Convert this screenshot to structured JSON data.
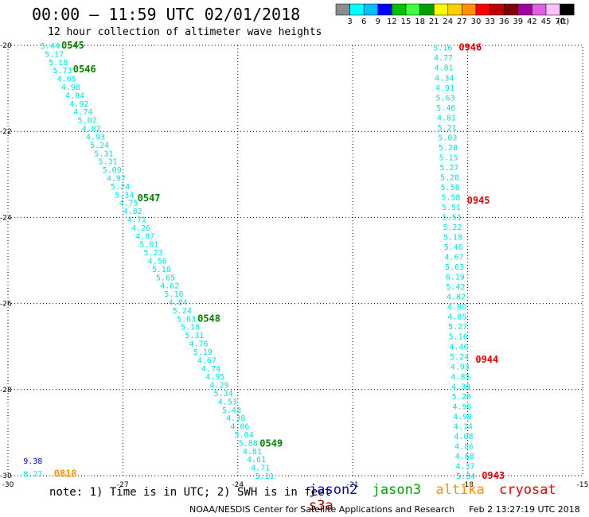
{
  "header": {
    "title": "00:00 – 11:59 UTC 02/01/2018",
    "subtitle": "12 hour collection of altimeter wave heights"
  },
  "colorbar": {
    "colors": [
      "#8c8c8c",
      "#00ffff",
      "#00c0ff",
      "#0000ff",
      "#00c000",
      "#40ff40",
      "#00a000",
      "#ffff00",
      "#ffd000",
      "#ff9000",
      "#ff0000",
      "#c00000",
      "#800000",
      "#a000a0",
      "#e060e0",
      "#ffc0ff",
      "#000000"
    ],
    "labels": [
      "3",
      "6",
      "9",
      "12",
      "15",
      "18",
      "21",
      "24",
      "27",
      "30",
      "33",
      "36",
      "39",
      "42",
      "45",
      "70"
    ],
    "unit": "(ft)"
  },
  "axes": {
    "x_ticks": [
      "-30",
      "-27",
      "-24",
      "-21",
      "-18",
      "-15"
    ],
    "y_ticks": [
      "-20",
      "-22",
      "-24",
      "-26",
      "-28",
      "-30"
    ]
  },
  "chart_data": {
    "type": "scatter",
    "xlim": [
      -30,
      -15
    ],
    "ylim": [
      -30,
      -20
    ],
    "grid": "dotted",
    "tracks": [
      {
        "satellite": "jason3",
        "lon_start": -28.9,
        "lat_start": -20.0,
        "lon_end": -23.3,
        "lat_end": -30.0,
        "values": [
          "5.44",
          "5.17",
          "5.18",
          "5.73",
          "4.65",
          "4.98",
          "4.04",
          "4.92",
          "4.74",
          "5.02",
          "4.82",
          "4.93",
          "5.24",
          "5.31",
          "5.31",
          "5.09",
          "4.97",
          "5.24",
          "5.34",
          "4.75",
          "4.82",
          "4.71",
          "4.26",
          "4.87",
          "5.01",
          "5.23",
          "4.56",
          "5.18",
          "5.65",
          "4.62",
          "5.16",
          "4.84",
          "5.24",
          "5.63",
          "5.18",
          "5.31",
          "4.76",
          "5.19",
          "4.67",
          "4.74",
          "4.95",
          "4.29",
          "5.34",
          "4.53",
          "5.48",
          "4.38",
          "4.06",
          "5.04",
          "5.88",
          "4.81",
          "4.61",
          "4.71",
          "5.11"
        ],
        "time_labels": [
          {
            "text": "0545",
            "lat": -20.0
          },
          {
            "text": "0546",
            "lat": -20.55
          },
          {
            "text": "0547",
            "lat": -23.55
          },
          {
            "text": "0548",
            "lat": -26.35
          },
          {
            "text": "0549",
            "lat": -29.25
          }
        ]
      },
      {
        "satellite": "cryosat",
        "lon_start": -18.65,
        "lat_start": -20.05,
        "lon_end": -18.05,
        "lat_end": -30.0,
        "values": [
          "5.16",
          "4.77",
          "4.81",
          "4.34",
          "4.91",
          "5.63",
          "5.46",
          "4.81",
          "5.21",
          "5.03",
          "5.28",
          "5.15",
          "5.27",
          "5.28",
          "5.58",
          "5.58",
          "5.51",
          "5.51",
          "5.22",
          "5.18",
          "5.46",
          "4.67",
          "5.63",
          "6.19",
          "5.42",
          "4.82",
          "4.80",
          "4.85",
          "5.27",
          "5.16",
          "4.46",
          "5.24",
          "4.93",
          "4.85",
          "4.39",
          "5.20",
          "4.96",
          "4.99",
          "4.14",
          "4.08",
          "4.86",
          "4.68",
          "4.37",
          "5.34"
        ],
        "time_labels": [
          {
            "text": "0946",
            "lat": -20.05
          },
          {
            "text": "0945",
            "lat": -23.6
          },
          {
            "text": "0944",
            "lat": -27.3
          },
          {
            "text": "0943",
            "lat": -30.0
          }
        ]
      },
      {
        "satellite": "jason2",
        "points": [
          {
            "lon": -29.6,
            "lat": -29.65,
            "value": "9.38"
          }
        ]
      },
      {
        "satellite": "jason3-south",
        "points": [
          {
            "lon": -29.6,
            "lat": -29.95,
            "value": "8.77"
          }
        ]
      },
      {
        "satellite": "altika",
        "time_labels": [
          {
            "text": "0818",
            "lon": -28.8,
            "lat": -29.95
          }
        ]
      }
    ]
  },
  "note": "note: 1) Time is in UTC; 2) SWH is in feet",
  "legend": [
    {
      "name": "jason2",
      "color": "#0000cc"
    },
    {
      "name": "jason3",
      "color": "#00a000"
    },
    {
      "name": "altika",
      "color": "#ff9000"
    },
    {
      "name": "cryosat",
      "color": "#e00000"
    },
    {
      "name": "s3a",
      "color": "#a00000"
    }
  ],
  "footer": {
    "org": "NOAA/NESDIS Center for Satellite Applications and Research",
    "timestamp": "Feb  2 13:27:19 UTC 2018"
  },
  "colors": {
    "value_text": "#00e0e0",
    "jason3_time": "#008000",
    "cryosat_time": "#e00000",
    "jason2_text": "#0000cc",
    "altika_text": "#ff9000",
    "grid": "#000000"
  }
}
